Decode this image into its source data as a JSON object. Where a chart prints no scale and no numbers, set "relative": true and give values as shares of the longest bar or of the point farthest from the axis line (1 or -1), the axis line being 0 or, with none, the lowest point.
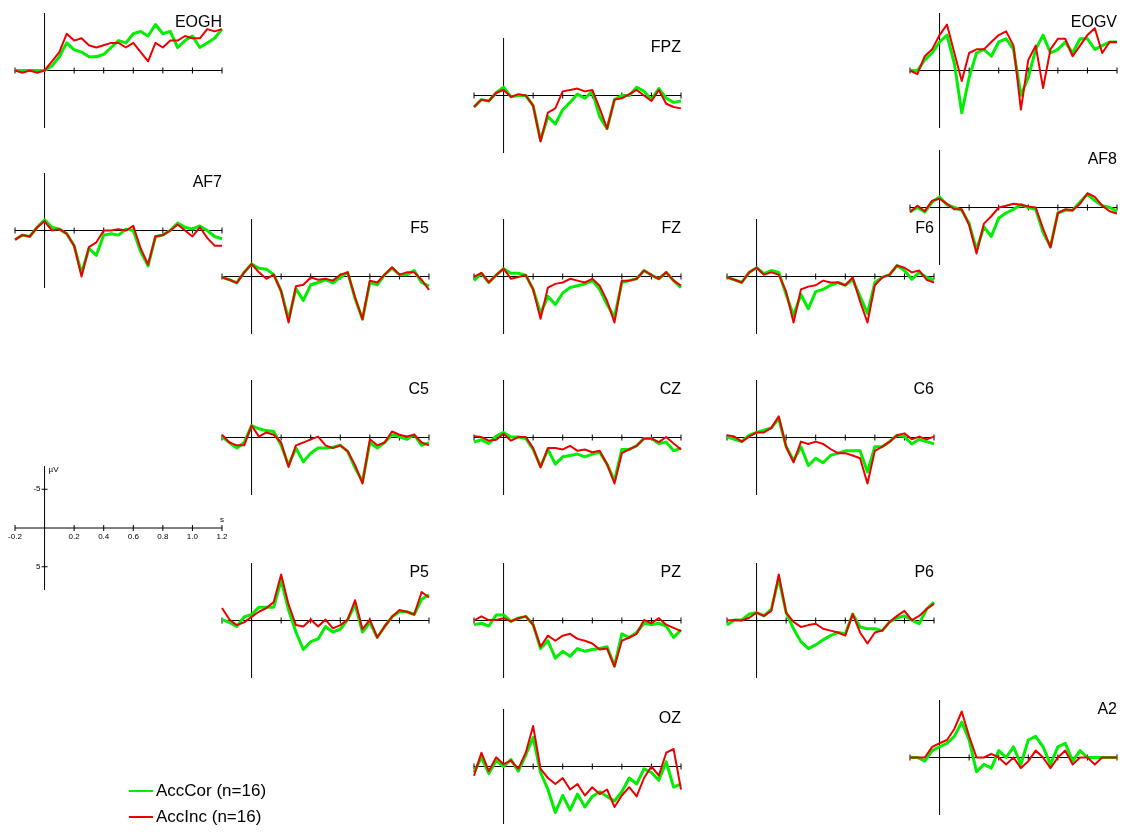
{
  "chart_data": [
    {
      "type": "line",
      "title": "EOGH",
      "relative": true,
      "categories": [
        null,
        null,
        null,
        null,
        null,
        null,
        null,
        null,
        null,
        null,
        null,
        null,
        null,
        null,
        null,
        null,
        null,
        null,
        null,
        null,
        null,
        null,
        null,
        null,
        null,
        null,
        null,
        null,
        null
      ],
      "series": [
        {
          "color": "#00ee00",
          "values": [
            0,
            0,
            0,
            0,
            0,
            0.1,
            0.3,
            0.6,
            0.45,
            0.4,
            0.3,
            0.3,
            0.35,
            0.5,
            0.65,
            0.6,
            0.8,
            0.85,
            0.75,
            1,
            0.8,
            0.85,
            0.5,
            0.65,
            0.75,
            0.5,
            0.6,
            0.7,
            0.9
          ]
        },
        {
          "color": "#ee0000",
          "values": [
            0,
            -0.05,
            0,
            -0.05,
            0,
            0.2,
            0.4,
            0.8,
            0.65,
            0.7,
            0.55,
            0.5,
            0.55,
            0.6,
            0.6,
            0.5,
            0.6,
            0.4,
            0.2,
            0.6,
            0.5,
            0.65,
            0.65,
            0.75,
            0.7,
            0.7,
            0.9,
            0.85,
            0.9
          ]
        }
      ]
    },
    {
      "type": "line",
      "title": "FPZ",
      "relative": true,
      "categories": [
        null,
        null,
        null,
        null,
        null,
        null,
        null,
        null,
        null,
        null,
        null,
        null,
        null,
        null,
        null,
        null,
        null,
        null,
        null,
        null,
        null,
        null,
        null,
        null,
        null,
        null,
        null,
        null,
        null
      ],
      "series": [
        {
          "color": "#00ee00",
          "values": [
            -0.25,
            -0.09,
            -0.12,
            0.06,
            0.18,
            -0.03,
            0,
            0,
            -0.22,
            -0.97,
            -0.46,
            -0.62,
            -0.31,
            -0.15,
            0.03,
            -0.06,
            0.09,
            -0.46,
            -0.72,
            -0.09,
            0,
            0,
            0.18,
            0.09,
            -0.09,
            0.15,
            -0.06,
            -0.15,
            -0.12
          ]
        },
        {
          "color": "#ee0000",
          "values": [
            -0.25,
            -0.09,
            -0.12,
            0.06,
            0.12,
            -0.03,
            0.03,
            0,
            -0.22,
            -1,
            -0.37,
            -0.28,
            0.09,
            0.12,
            0.15,
            0.09,
            0.12,
            -0.28,
            -0.72,
            -0.09,
            -0.06,
            0.03,
            0.12,
            0,
            -0.12,
            0.12,
            -0.18,
            -0.25,
            -0.28
          ]
        }
      ]
    },
    {
      "type": "line",
      "title": "EOGV",
      "relative": true,
      "categories": [
        null,
        null,
        null,
        null,
        null,
        null,
        null,
        null,
        null,
        null,
        null,
        null,
        null,
        null,
        null,
        null,
        null,
        null,
        null,
        null,
        null,
        null,
        null,
        null,
        null,
        null,
        null,
        null,
        null
      ],
      "series": [
        {
          "color": "#00ee00",
          "values": [
            0,
            0,
            0.23,
            0.38,
            0.62,
            0.77,
            0.15,
            -0.92,
            -0.15,
            0.38,
            0.46,
            0.31,
            0.62,
            0.69,
            0.46,
            -0.54,
            -0.15,
            0.46,
            0.77,
            0.38,
            0.46,
            0.62,
            0.38,
            0.69,
            0.69,
            0.46,
            0.54,
            0.62,
            0.62
          ]
        },
        {
          "color": "#ee0000",
          "values": [
            0,
            -0.08,
            0.31,
            0.46,
            0.77,
            1,
            0.38,
            -0.23,
            0.38,
            0.46,
            0.46,
            0.62,
            0.77,
            0.85,
            0.54,
            -0.85,
            0.23,
            0.54,
            -0.38,
            0.46,
            0.69,
            0.69,
            0.31,
            0.54,
            0.77,
            0.92,
            0.38,
            0.62,
            0.62
          ]
        }
      ]
    },
    {
      "type": "line",
      "title": "AF7",
      "relative": true,
      "categories": [
        null,
        null,
        null,
        null,
        null,
        null,
        null,
        null,
        null,
        null,
        null,
        null,
        null,
        null,
        null,
        null,
        null,
        null,
        null,
        null,
        null,
        null,
        null,
        null,
        null,
        null,
        null,
        null,
        null
      ],
      "series": [
        {
          "color": "#00ee00",
          "values": [
            -0.2,
            -0.1,
            -0.13,
            0.07,
            0.23,
            0.07,
            0.03,
            -0.07,
            -0.33,
            -0.93,
            -0.39,
            -0.54,
            -0.1,
            -0.07,
            -0.1,
            0.03,
            0,
            -0.46,
            -0.77,
            -0.13,
            -0.1,
            0,
            0.16,
            0.07,
            0.03,
            0.1,
            0,
            -0.13,
            -0.18
          ]
        },
        {
          "color": "#ee0000",
          "values": [
            -0.2,
            -0.1,
            -0.13,
            0.07,
            0.2,
            0,
            0.03,
            -0.07,
            -0.33,
            -1,
            -0.36,
            -0.26,
            0,
            0,
            0.03,
            0,
            0.1,
            -0.39,
            -0.74,
            -0.13,
            -0.1,
            0,
            0.13,
            0,
            -0.13,
            0.07,
            -0.16,
            -0.33,
            -0.33
          ]
        }
      ]
    },
    {
      "type": "line",
      "title": "AF8",
      "relative": true,
      "categories": [
        null,
        null,
        null,
        null,
        null,
        null,
        null,
        null,
        null,
        null,
        null,
        null,
        null,
        null,
        null,
        null,
        null,
        null,
        null,
        null,
        null,
        null,
        null,
        null,
        null,
        null,
        null,
        null,
        null
      ],
      "series": [
        {
          "color": "#00ee00",
          "values": [
            -0.1,
            0,
            -0.1,
            0.12,
            0.23,
            0.06,
            0,
            -0.06,
            -0.35,
            -0.92,
            -0.42,
            -0.63,
            -0.23,
            -0.12,
            -0.04,
            0.06,
            0,
            -0.04,
            -0.54,
            -0.85,
            -0.12,
            -0.06,
            -0.06,
            0.12,
            0.29,
            0.15,
            0.04,
            0,
            -0.08
          ]
        },
        {
          "color": "#ee0000",
          "values": [
            -0.1,
            0.04,
            -0.08,
            0.15,
            0.19,
            0.08,
            -0.04,
            -0.04,
            -0.38,
            -1,
            -0.35,
            -0.19,
            0,
            0.04,
            0.08,
            0.06,
            0.02,
            0,
            -0.46,
            -0.87,
            -0.12,
            -0.04,
            -0.06,
            0.08,
            0.31,
            0.23,
            0.04,
            -0.08,
            -0.13
          ]
        }
      ]
    },
    {
      "type": "line",
      "title": "F5",
      "relative": true,
      "categories": [
        null,
        null,
        null,
        null,
        null,
        null,
        null,
        null,
        null,
        null,
        null,
        null,
        null,
        null,
        null,
        null,
        null,
        null,
        null,
        null,
        null,
        null,
        null,
        null,
        null,
        null,
        null,
        null,
        null
      ],
      "series": [
        {
          "color": "#00ee00",
          "values": [
            -0.02,
            -0.07,
            -0.14,
            0.09,
            0.27,
            0.18,
            0.16,
            0.04,
            -0.32,
            -0.93,
            -0.27,
            -0.52,
            -0.18,
            -0.13,
            -0.07,
            -0.14,
            -0.02,
            0.09,
            -0.48,
            -0.93,
            -0.13,
            -0.18,
            0.04,
            0.18,
            0.04,
            0.04,
            0.13,
            -0.13,
            -0.21
          ]
        },
        {
          "color": "#ee0000",
          "values": [
            -0.02,
            -0.07,
            -0.14,
            0.09,
            0.27,
            0.09,
            -0.05,
            0.04,
            -0.32,
            -1,
            -0.21,
            -0.18,
            -0.02,
            -0.07,
            -0.05,
            -0.09,
            0.04,
            0.09,
            -0.45,
            -0.93,
            -0.09,
            -0.13,
            0.04,
            0.2,
            0.04,
            0.09,
            0.09,
            -0.07,
            -0.29
          ]
        }
      ]
    },
    {
      "type": "line",
      "title": "FZ",
      "relative": true,
      "categories": [
        null,
        null,
        null,
        null,
        null,
        null,
        null,
        null,
        null,
        null,
        null,
        null,
        null,
        null,
        null,
        null,
        null,
        null,
        null,
        null,
        null,
        null,
        null,
        null,
        null,
        null,
        null,
        null,
        null
      ],
      "series": [
        {
          "color": "#00ee00",
          "values": [
            -0.09,
            0.07,
            -0.13,
            0.03,
            0.17,
            0.07,
            0.07,
            0.03,
            -0.28,
            -0.8,
            -0.43,
            -0.61,
            -0.36,
            -0.24,
            -0.2,
            -0.16,
            -0.09,
            -0.28,
            -0.61,
            -0.88,
            -0.13,
            -0.09,
            -0.05,
            0.13,
            0.03,
            -0.05,
            0.09,
            -0.09,
            -0.24
          ]
        },
        {
          "color": "#ee0000",
          "values": [
            -0.01,
            0.08,
            -0.13,
            0.03,
            0.17,
            -0.05,
            -0.01,
            0.03,
            -0.28,
            -0.92,
            -0.24,
            -0.16,
            -0.13,
            -0.05,
            -0.09,
            -0.13,
            -0.05,
            -0.2,
            -0.53,
            -1,
            -0.09,
            -0.09,
            -0.05,
            0.13,
            0.03,
            -0.05,
            0.09,
            -0.09,
            -0.2
          ]
        }
      ]
    },
    {
      "type": "line",
      "title": "F6",
      "relative": true,
      "categories": [
        null,
        null,
        null,
        null,
        null,
        null,
        null,
        null,
        null,
        null,
        null,
        null,
        null,
        null,
        null,
        null,
        null,
        null,
        null,
        null,
        null,
        null,
        null,
        null,
        null,
        null,
        null,
        null,
        null
      ],
      "series": [
        {
          "color": "#00ee00",
          "values": [
            -0.02,
            -0.07,
            -0.13,
            0.09,
            0.19,
            0.06,
            0.13,
            0.09,
            -0.39,
            -0.85,
            -0.39,
            -0.7,
            -0.33,
            -0.28,
            -0.19,
            -0.13,
            -0.19,
            -0.07,
            -0.43,
            -0.8,
            -0.13,
            -0.02,
            0.04,
            0.24,
            0.13,
            -0.06,
            0.09,
            -0.02,
            -0.07
          ]
        },
        {
          "color": "#ee0000",
          "values": [
            -0.02,
            -0.07,
            -0.13,
            0.09,
            0.19,
            0.04,
            0.09,
            0.04,
            -0.33,
            -1,
            -0.28,
            -0.22,
            -0.19,
            -0.09,
            -0.13,
            -0.13,
            -0.19,
            -0.02,
            -0.54,
            -1,
            -0.19,
            -0.02,
            0.04,
            0.24,
            0.19,
            0.09,
            0.13,
            -0.07,
            -0.13
          ]
        }
      ]
    },
    {
      "type": "line",
      "title": "C5",
      "relative": true,
      "categories": [
        null,
        null,
        null,
        null,
        null,
        null,
        null,
        null,
        null,
        null,
        null,
        null,
        null,
        null,
        null,
        null,
        null,
        null,
        null,
        null,
        null,
        null,
        null,
        null,
        null,
        null,
        null,
        null,
        null
      ],
      "series": [
        {
          "color": "#00ee00",
          "values": [
            0.02,
            -0.11,
            -0.23,
            -0.11,
            0.26,
            0.19,
            0.15,
            0.13,
            -0.17,
            -0.6,
            -0.23,
            -0.53,
            -0.34,
            -0.23,
            -0.23,
            -0.21,
            -0.17,
            -0.3,
            -0.66,
            -0.96,
            -0.11,
            -0.23,
            -0.11,
            0.06,
            0.02,
            -0.04,
            0.06,
            -0.17,
            -0.11
          ]
        },
        {
          "color": "#ee0000",
          "values": [
            0.06,
            -0.11,
            -0.17,
            -0.17,
            0.26,
            0.02,
            0.11,
            0.06,
            -0.11,
            -0.64,
            -0.17,
            -0.11,
            -0.04,
            0.02,
            -0.17,
            -0.23,
            -0.17,
            -0.3,
            -0.6,
            -1,
            -0.04,
            -0.17,
            -0.11,
            0.13,
            0.06,
            0.02,
            0.06,
            -0.11,
            -0.17
          ]
        }
      ]
    },
    {
      "type": "line",
      "title": "CZ",
      "relative": true,
      "categories": [
        null,
        null,
        null,
        null,
        null,
        null,
        null,
        null,
        null,
        null,
        null,
        null,
        null,
        null,
        null,
        null,
        null,
        null,
        null,
        null,
        null,
        null,
        null,
        null,
        null,
        null,
        null,
        null,
        null
      ],
      "series": [
        {
          "color": "#00ee00",
          "values": [
            -0.1,
            -0.05,
            -0.13,
            0.03,
            0.11,
            0.01,
            0.01,
            -0.02,
            -0.26,
            -0.63,
            -0.26,
            -0.58,
            -0.42,
            -0.39,
            -0.36,
            -0.42,
            -0.36,
            -0.32,
            -0.58,
            -0.94,
            -0.26,
            -0.26,
            -0.18,
            -0.02,
            -0.02,
            -0.13,
            -0.1,
            -0.29,
            -0.23
          ]
        },
        {
          "color": "#ee0000",
          "values": [
            0.03,
            0.01,
            -0.07,
            -0.05,
            0.08,
            -0.07,
            0.01,
            0.01,
            -0.23,
            -0.65,
            -0.23,
            -0.23,
            -0.26,
            -0.18,
            -0.29,
            -0.26,
            -0.32,
            -0.29,
            -0.58,
            -1,
            -0.34,
            -0.26,
            -0.18,
            -0.02,
            -0.02,
            -0.1,
            0.01,
            -0.13,
            -0.26
          ]
        }
      ]
    },
    {
      "type": "line",
      "title": "C6",
      "relative": true,
      "categories": [
        null,
        null,
        null,
        null,
        null,
        null,
        null,
        null,
        null,
        null,
        null,
        null,
        null,
        null,
        null,
        null,
        null,
        null,
        null,
        null,
        null,
        null,
        null,
        null,
        null,
        null,
        null,
        null,
        null
      ],
      "series": [
        {
          "color": "#00ee00",
          "values": [
            0.02,
            -0.04,
            -0.09,
            0.05,
            0.11,
            0.16,
            0.21,
            0.41,
            -0.2,
            -0.5,
            -0.2,
            -0.61,
            -0.45,
            -0.55,
            -0.39,
            -0.34,
            -0.29,
            -0.29,
            -0.29,
            -0.75,
            -0.2,
            -0.2,
            -0.09,
            0.05,
            0.02,
            -0.14,
            -0.04,
            -0.09,
            -0.14
          ]
        },
        {
          "color": "#ee0000",
          "values": [
            0.05,
            0.02,
            -0.09,
            0.02,
            0.11,
            0.11,
            0.21,
            0.46,
            -0.2,
            -0.54,
            -0.09,
            -0.14,
            -0.09,
            -0.14,
            -0.25,
            -0.34,
            -0.34,
            -0.39,
            -0.45,
            -1,
            -0.29,
            -0.2,
            -0.09,
            0.05,
            0.09,
            -0.04,
            0.02,
            -0.04,
            0.02
          ]
        }
      ]
    },
    {
      "type": "line",
      "xlabel": "s",
      "ylabel": "µV",
      "xlim": [
        -0.2,
        1.2
      ],
      "ylim": [
        8,
        -8
      ],
      "xticks": [
        -0.2,
        0.2,
        0.4,
        0.6,
        0.8,
        {
          "value": 1,
          "label": "1.0"
        },
        1.2
      ],
      "yticks": [
        -5,
        5
      ]
    },
    {
      "type": "line",
      "title": "P5",
      "relative": true,
      "categories": [
        null,
        null,
        null,
        null,
        null,
        null,
        null,
        null,
        null,
        null,
        null,
        null,
        null,
        null,
        null,
        null,
        null,
        null,
        null,
        null,
        null,
        null,
        null,
        null,
        null,
        null,
        null,
        null,
        null
      ],
      "series": [
        {
          "color": "#00ee00",
          "values": [
            0.02,
            -0.04,
            -0.13,
            0.08,
            0.13,
            0.29,
            0.29,
            0.29,
            0.88,
            0.23,
            -0.25,
            -0.63,
            -0.46,
            -0.4,
            -0.13,
            -0.25,
            -0.19,
            0.02,
            0.35,
            -0.25,
            -0.04,
            -0.37,
            -0.13,
            0.08,
            0.19,
            0.19,
            0.13,
            0.46,
            0.56
          ]
        },
        {
          "color": "#ee0000",
          "values": [
            0.27,
            0.02,
            -0.1,
            -0.04,
            0.08,
            0.19,
            0.27,
            0.4,
            1,
            0.35,
            -0.1,
            -0.13,
            0.02,
            -0.13,
            0.02,
            -0.17,
            -0.1,
            0.02,
            0.44,
            -0.19,
            0.02,
            -0.37,
            -0.13,
            0.08,
            0.23,
            0.19,
            0.13,
            0.62,
            0.5
          ]
        }
      ]
    },
    {
      "type": "line",
      "title": "PZ",
      "relative": true,
      "categories": [
        null,
        null,
        null,
        null,
        null,
        null,
        null,
        null,
        null,
        null,
        null,
        null,
        null,
        null,
        null,
        null,
        null,
        null,
        null,
        null,
        null,
        null,
        null,
        null,
        null,
        null,
        null,
        null,
        null
      ],
      "series": [
        {
          "color": "#00ee00",
          "values": [
            -0.09,
            -0.06,
            -0.12,
            0.12,
            0.12,
            -0.02,
            0.05,
            0.09,
            -0.09,
            -0.61,
            -0.44,
            -0.82,
            -0.67,
            -0.78,
            -0.61,
            -0.67,
            -0.63,
            -0.61,
            -0.57,
            -0.99,
            -0.29,
            -0.37,
            -0.26,
            -0.06,
            -0.09,
            -0.06,
            -0.12,
            -0.37,
            -0.2
          ]
        },
        {
          "color": "#ee0000",
          "values": [
            0,
            0.09,
            0.01,
            0.01,
            0.05,
            -0.02,
            0.05,
            0.09,
            -0.09,
            -0.57,
            -0.33,
            -0.44,
            -0.33,
            -0.29,
            -0.4,
            -0.44,
            -0.5,
            -0.63,
            -0.61,
            -1,
            -0.44,
            -0.37,
            -0.29,
            0.01,
            -0.06,
            0.05,
            -0.09,
            -0.16,
            -0.23
          ]
        }
      ]
    },
    {
      "type": "line",
      "title": "P6",
      "relative": true,
      "categories": [
        null,
        null,
        null,
        null,
        null,
        null,
        null,
        null,
        null,
        null,
        null,
        null,
        null,
        null,
        null,
        null,
        null,
        null,
        null,
        null,
        null,
        null,
        null,
        null,
        null,
        null,
        null,
        null,
        null
      ],
      "series": [
        {
          "color": "#00ee00",
          "values": [
            -0.1,
            0.01,
            0.01,
            0.14,
            0.17,
            0.1,
            0.25,
            0.92,
            0.17,
            -0.18,
            -0.46,
            -0.61,
            -0.53,
            -0.42,
            -0.33,
            -0.26,
            -0.29,
            0.14,
            -0.14,
            -0.18,
            -0.18,
            -0.22,
            -0.03,
            0.06,
            0.1,
            0.01,
            -0.07,
            0.25,
            0.4
          ]
        },
        {
          "color": "#ee0000",
          "values": [
            0,
            0.01,
            0,
            0.06,
            0.17,
            0.1,
            0.21,
            1,
            0.17,
            -0.03,
            -0.14,
            -0.1,
            -0.07,
            -0.18,
            -0.22,
            -0.26,
            -0.33,
            0.14,
            -0.26,
            -0.5,
            -0.26,
            -0.22,
            -0.03,
            0.1,
            0.21,
            0.01,
            0.1,
            0.25,
            0.36
          ]
        }
      ]
    },
    {
      "type": "line",
      "title": "OZ",
      "relative": true,
      "legend": "left",
      "categories": [
        null,
        null,
        null,
        null,
        null,
        null,
        null,
        null,
        null,
        null,
        null,
        null,
        null,
        null,
        null,
        null,
        null,
        null,
        null,
        null,
        null,
        null,
        null,
        null,
        null,
        null,
        null,
        null,
        null
      ],
      "series": [
        {
          "name": "AccCor (n=16)",
          "color": "#00ee00",
          "values": [
            -0.13,
            0.2,
            -0.15,
            0.13,
            0,
            0.15,
            -0.1,
            0.25,
            0.63,
            -0.13,
            -0.5,
            -1,
            -0.63,
            -0.95,
            -0.6,
            -0.88,
            -0.65,
            -0.55,
            -0.65,
            -0.75,
            -0.55,
            -0.25,
            -0.38,
            -0.05,
            -0.13,
            -0.3,
            0.1,
            -0.45,
            -0.38
          ]
        },
        {
          "name": "AccInc (n=16)",
          "color": "#ee0000",
          "values": [
            -0.2,
            0.3,
            -0.1,
            0.2,
            0.05,
            0.13,
            -0.05,
            0.3,
            0.88,
            -0.05,
            -0.25,
            -0.38,
            -0.25,
            -0.5,
            -0.38,
            -0.63,
            -0.45,
            -0.6,
            -0.5,
            -0.88,
            -0.63,
            -0.45,
            -0.65,
            -0.25,
            0,
            -0.2,
            0.3,
            0.38,
            -0.5
          ]
        }
      ]
    },
    {
      "type": "line",
      "title": "A2",
      "relative": true,
      "categories": [
        null,
        null,
        null,
        null,
        null,
        null,
        null,
        null,
        null,
        null,
        null,
        null,
        null,
        null,
        null,
        null,
        null,
        null,
        null,
        null,
        null,
        null,
        null,
        null,
        null,
        null,
        null,
        null,
        null
      ],
      "series": [
        {
          "color": "#00ee00",
          "values": [
            0,
            0,
            -0.08,
            0.15,
            0.23,
            0.31,
            0.46,
            0.77,
            0.38,
            -0.31,
            -0.15,
            -0.23,
            0.15,
            0,
            0.23,
            -0.15,
            0.38,
            0.46,
            0.23,
            -0.15,
            0.23,
            0.31,
            -0.08,
            0.15,
            0,
            0,
            0,
            0,
            0
          ]
        },
        {
          "color": "#ee0000",
          "values": [
            0,
            0,
            0,
            0.23,
            0.31,
            0.38,
            0.62,
            1,
            0.46,
            0,
            0,
            0.08,
            0,
            -0.15,
            0,
            -0.23,
            -0.08,
            0.15,
            0,
            -0.23,
            0,
            0.15,
            -0.15,
            0,
            0,
            -0.15,
            0,
            0,
            0
          ]
        }
      ]
    }
  ]
}
